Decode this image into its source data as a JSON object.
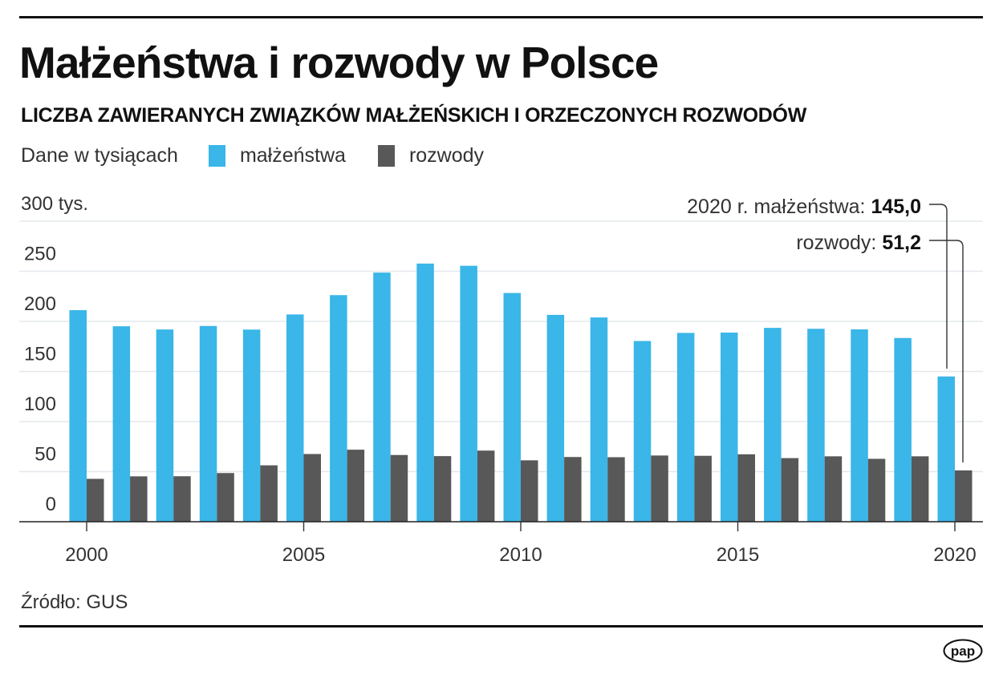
{
  "header": {
    "title": "Małżeństwa i rozwody w Polsce",
    "subtitle": "LICZBA ZAWIERANYCH ZWIĄZKÓW MAŁŻEŃSKICH I ORZECZONYCH ROZWODÓW",
    "unit_note": "Dane w tysiącach"
  },
  "legend": [
    {
      "label": "małżeństwa",
      "color": "#3AB6E8"
    },
    {
      "label": "rozwody",
      "color": "#585858"
    }
  ],
  "annotation": {
    "line1_prefix": "2020 r. małżeństwa: ",
    "line1_value": "145,0",
    "line2_prefix": "rozwody: ",
    "line2_value": "51,2"
  },
  "footer": {
    "source": "Źródło: GUS",
    "logo": "pap"
  },
  "colors": {
    "marriages": "#3AB6E8",
    "divorces": "#585858",
    "grid": "#E3E8EC",
    "axis": "#222222"
  },
  "chart_data": {
    "type": "bar",
    "title": "Małżeństwa i rozwody w Polsce",
    "subtitle": "LICZBA ZAWIERANYCH ZWIĄZKÓW MAŁŻEŃSKICH I ORZECZONYCH ROZWODÓW",
    "xlabel": "",
    "ylabel": "Dane w tysiącach",
    "ylim": [
      0,
      300
    ],
    "y_ticks": [
      "0",
      "50",
      "100",
      "150",
      "200",
      "250",
      "300 tys."
    ],
    "x_tick_labels": [
      "2000",
      "2005",
      "2010",
      "2015",
      "2020"
    ],
    "grid": true,
    "legend_position": "top-left",
    "categories": [
      "2000",
      "2001",
      "2002",
      "2003",
      "2004",
      "2005",
      "2006",
      "2007",
      "2008",
      "2009",
      "2010",
      "2011",
      "2012",
      "2013",
      "2014",
      "2015",
      "2016",
      "2017",
      "2018",
      "2019",
      "2020"
    ],
    "series": [
      {
        "name": "małżeństwa",
        "color": "#3AB6E8",
        "values": [
          211.2,
          195.1,
          191.9,
          195.4,
          191.8,
          206.9,
          226.2,
          248.7,
          257.7,
          255.5,
          228.3,
          206.5,
          203.9,
          180.4,
          188.5,
          188.8,
          193.5,
          192.6,
          192.0,
          183.4,
          145.0
        ]
      },
      {
        "name": "rozwody",
        "color": "#585858",
        "values": [
          42.8,
          45.3,
          45.4,
          48.6,
          56.3,
          67.6,
          71.9,
          66.6,
          65.5,
          71.0,
          61.3,
          64.6,
          64.4,
          66.1,
          65.8,
          67.3,
          63.5,
          65.3,
          62.8,
          65.3,
          51.2
        ]
      }
    ],
    "annotations": [
      {
        "text": "2020 r. małżeństwa: 145,0",
        "target": "2020 małżeństwa"
      },
      {
        "text": "rozwody: 51,2",
        "target": "2020 rozwody"
      }
    ]
  }
}
